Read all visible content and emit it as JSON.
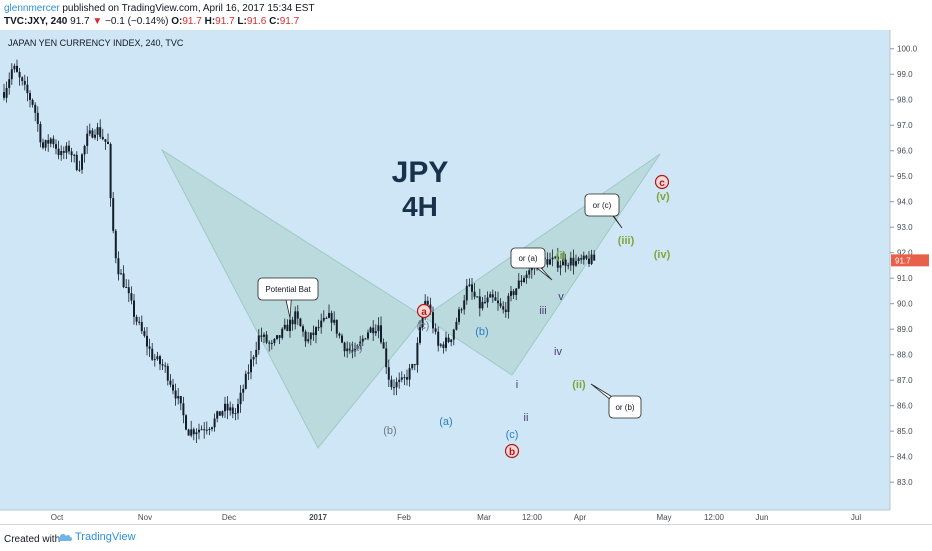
{
  "header": {
    "author": "glennmercer",
    "published": "published on TradingView.com, April 16, 2017 15:34 EST",
    "symbol": "TVC:JXY, 240",
    "last": "91.7",
    "change": "−0.1 (−0.14%)",
    "o_label": "O:",
    "o_value": "91.7",
    "h_label": "H:",
    "h_value": "91.7",
    "l_label": "L:",
    "l_value": "91.6",
    "c_label": "C:",
    "c_value": "91.7"
  },
  "footer": {
    "created_with": "Created with",
    "brand": "TradingView"
  },
  "colors": {
    "background": "#cfe6f6",
    "candle": "#141e2a",
    "pattern": "#b4d6d4",
    "pattern_edge": "#9fc9c4",
    "price_tag": "#e8604a",
    "red_label": "#b01818",
    "green_label": "#7ea63c",
    "blue_label": "#2b7fc2",
    "purple_label": "#4a3a78",
    "gray_label": "#6c7a86"
  },
  "chart_data": {
    "type": "candlestick",
    "title": "JAPAN YEN CURRENCY INDEX, 240, TVC",
    "watermark": [
      "JPY",
      "4H"
    ],
    "ylim": [
      82.3,
      100.5
    ],
    "yticks": [
      "100.0",
      "99.0",
      "98.0",
      "97.0",
      "96.0",
      "95.0",
      "94.0",
      "93.0",
      "92.0",
      "91.0",
      "90.0",
      "89.0",
      "88.0",
      "87.0",
      "86.0",
      "85.0",
      "84.0",
      "83.0"
    ],
    "xticks": [
      "Oct",
      "Nov",
      "Dec",
      "2017",
      "Feb",
      "Mar",
      "12:00",
      "Apr",
      "May",
      "12:00",
      "Jun",
      "Jul"
    ],
    "last_price": "91.7",
    "series": [
      {
        "x": [
          "Sep 26",
          "Sep 29",
          "Oct 3",
          "Oct 6",
          "Oct 9",
          "Oct 12",
          "Oct 15",
          "Oct 18",
          "Oct 21",
          "Oct 24",
          "Oct 27",
          "Oct 31",
          "Nov 1",
          "Nov 3",
          "Nov 6",
          "Nov 9",
          "Nov 12",
          "Nov 15",
          "Nov 19",
          "Nov 23",
          "Nov 27",
          "Dec 1",
          "Dec 5",
          "Dec 9",
          "Dec 13",
          "Dec 17",
          "Dec 21",
          "Dec 25",
          "Dec 29",
          "Jan 2",
          "Jan 6",
          "Jan 10",
          "Jan 14",
          "Jan 18",
          "Jan 22",
          "Jan 26",
          "Jan 30",
          "Feb 3",
          "Feb 7",
          "Feb 11",
          "Feb 15",
          "Feb 19",
          "Feb 23",
          "Feb 26",
          "Mar 1",
          "Mar 5",
          "Mar 9",
          "Mar 13",
          "Mar 16",
          "Mar 20",
          "Mar 24",
          "Mar 28",
          "Apr 1",
          "Apr 4",
          "Apr 7",
          "Apr 10",
          "Apr 13"
        ],
        "y": [
          98.3,
          99.3,
          98.4,
          97.8,
          96.1,
          96.5,
          95.8,
          96.1,
          95.3,
          96.5,
          96.9,
          96.2,
          93.6,
          91.5,
          90.6,
          89.5,
          88.7,
          87.9,
          87.5,
          86.4,
          85.0,
          85.1,
          85.3,
          85.9,
          85.7,
          87.3,
          88.8,
          88.3,
          88.9,
          89.5,
          88.5,
          89.1,
          89.5,
          88.4,
          88.0,
          88.9,
          89.2,
          86.8,
          86.9,
          87.6,
          90.3,
          88.3,
          88.6,
          89.6,
          90.7,
          89.9,
          90.2,
          89.7,
          90.4,
          91.1,
          91.6,
          91.7,
          91.6,
          91.7,
          91.6,
          91.7,
          91.7
        ]
      }
    ],
    "annotations": [
      {
        "text": "a",
        "style": "circled-red"
      },
      {
        "text": "b",
        "style": "circled-red"
      },
      {
        "text": "c",
        "style": "circled-red"
      },
      {
        "text": "(c)",
        "style": "gray"
      },
      {
        "text": "(a)",
        "style": "gray"
      },
      {
        "text": "(b)",
        "style": "gray"
      },
      {
        "text": "(a)",
        "style": "blue"
      },
      {
        "text": "(b)",
        "style": "blue"
      },
      {
        "text": "(c)",
        "style": "blue"
      },
      {
        "text": "i",
        "style": "purple"
      },
      {
        "text": "ii",
        "style": "purple"
      },
      {
        "text": "iii",
        "style": "purple"
      },
      {
        "text": "iv",
        "style": "purple"
      },
      {
        "text": "v",
        "style": "purple"
      },
      {
        "text": "(i)",
        "style": "green"
      },
      {
        "text": "(ii)",
        "style": "green"
      },
      {
        "text": "(iii)",
        "style": "green"
      },
      {
        "text": "(iv)",
        "style": "green"
      },
      {
        "text": "(v)",
        "style": "green"
      }
    ],
    "callouts": [
      "Potential Bat",
      "or (a)",
      "or (c)",
      "or (b)"
    ]
  }
}
